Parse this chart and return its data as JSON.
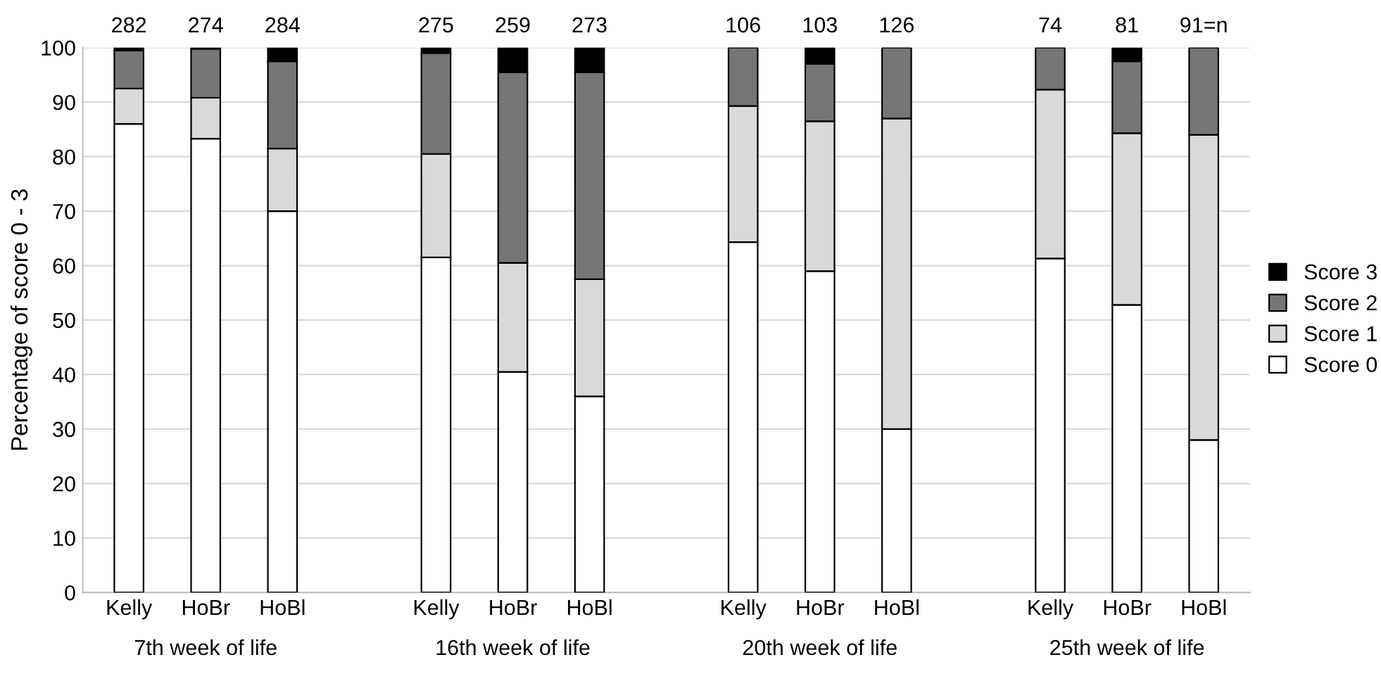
{
  "chart_data": {
    "type": "bar",
    "stacked": true,
    "ylabel": "Percentage of score 0 - 3",
    "categories": [
      "Kelly",
      "HoBr",
      "HoBl",
      null,
      "Kelly",
      "HoBr",
      "HoBl",
      null,
      "Kelly",
      "HoBr",
      "HoBl",
      null,
      "Kelly",
      "HoBr",
      "HoBl"
    ],
    "series": [
      {
        "name": "Score 0",
        "color": "#ffffff",
        "values": [
          86,
          83.3,
          70,
          null,
          61.5,
          40.5,
          36,
          null,
          64.3,
          59,
          30,
          null,
          61.3,
          52.8,
          28
        ]
      },
      {
        "name": "Score 1",
        "color": "#d9d9d9",
        "values": [
          6.5,
          7.5,
          11.5,
          null,
          19,
          20,
          21.5,
          null,
          25,
          27.5,
          57,
          null,
          31,
          31.5,
          56
        ]
      },
      {
        "name": "Score 2",
        "color": "#767676",
        "values": [
          7,
          9,
          16,
          null,
          18.5,
          35,
          38,
          null,
          10.7,
          10.5,
          13,
          null,
          7.7,
          13.2,
          16
        ]
      },
      {
        "name": "Score 3",
        "color": "#000000",
        "values": [
          0.5,
          0.2,
          2.5,
          null,
          1,
          4.5,
          4.5,
          null,
          0,
          3,
          0,
          null,
          0,
          2.5,
          0
        ]
      }
    ],
    "annotations": [
      "282",
      "274",
      "284",
      "275",
      "259",
      "273",
      "106",
      "103",
      "126",
      "74",
      "81",
      "91=n",
      "7th week of life",
      "16th week of life",
      "20th week of life",
      "25th week of life"
    ],
    "ylim": [
      0,
      100
    ],
    "yticks": [
      0,
      10,
      20,
      30,
      40,
      50,
      60,
      70,
      80,
      90,
      100
    ],
    "grid": "y",
    "legend": "right"
  }
}
